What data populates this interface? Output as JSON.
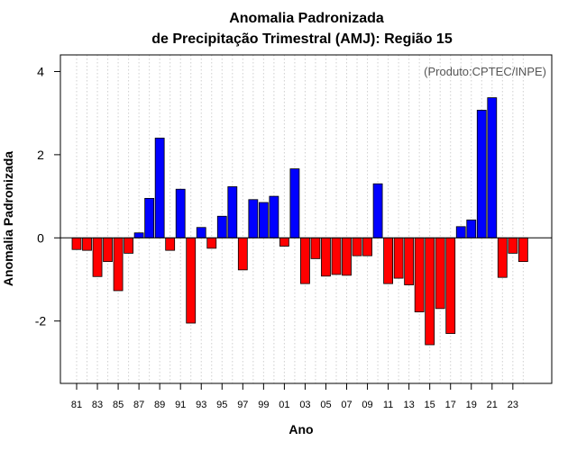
{
  "chart_data": {
    "type": "bar",
    "title": "Anomalia Padronizada",
    "subtitle": "de Precipitação Trimestral (AMJ): Região 15",
    "xlabel": "Ano",
    "ylabel": "Anomalia Padronizada",
    "credit": "(Produto:CPTEC/INPE)",
    "ylim": [
      -3.5,
      4.4
    ],
    "yticks": [
      -2,
      0,
      2,
      4
    ],
    "yticklabels": [
      "-2",
      "0",
      "2",
      "4"
    ],
    "grid": "vertical dotted",
    "positive_color": "#0000ff",
    "negative_color": "#ff0000",
    "categories": [
      "81",
      "82",
      "83",
      "84",
      "85",
      "86",
      "87",
      "88",
      "89",
      "90",
      "91",
      "92",
      "93",
      "94",
      "95",
      "96",
      "97",
      "98",
      "99",
      "00",
      "01",
      "02",
      "03",
      "04",
      "05",
      "06",
      "07",
      "08",
      "09",
      "10",
      "11",
      "12",
      "13",
      "14",
      "15",
      "16",
      "17",
      "18",
      "19",
      "20",
      "21",
      "22",
      "23",
      "24"
    ],
    "xticklabels": [
      "81",
      "83",
      "85",
      "87",
      "89",
      "91",
      "93",
      "95",
      "97",
      "99",
      "01",
      "03",
      "05",
      "07",
      "09",
      "11",
      "13",
      "15",
      "17",
      "19",
      "21",
      "23"
    ],
    "values": [
      -0.28,
      -0.3,
      -0.93,
      -0.57,
      -1.27,
      -0.37,
      0.12,
      0.95,
      2.4,
      -0.3,
      1.17,
      -2.05,
      0.25,
      -0.25,
      0.52,
      1.23,
      -0.77,
      0.92,
      0.85,
      1.0,
      -0.2,
      1.66,
      -1.1,
      -0.5,
      -0.92,
      -0.88,
      -0.9,
      -0.43,
      -0.43,
      1.3,
      -1.1,
      -0.97,
      -1.13,
      -1.78,
      -2.57,
      -1.7,
      -2.3,
      0.27,
      0.43,
      3.07,
      3.37,
      -0.95,
      -0.37,
      -0.57
    ]
  }
}
